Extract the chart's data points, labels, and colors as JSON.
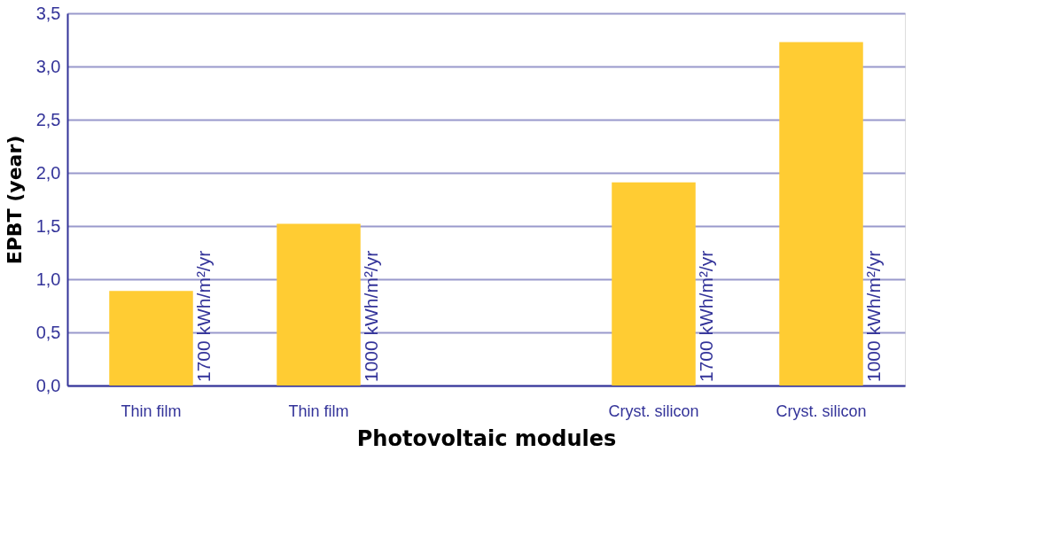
{
  "chart_data": {
    "type": "bar",
    "xlabel": "Photovoltaic modules",
    "ylabel": "EPBT (year)",
    "categories": [
      "Thin film",
      "Thin film",
      null,
      "Cryst. silicon",
      "Cryst. silicon"
    ],
    "series": [
      {
        "color": "#ffcc33",
        "values": [
          0.89,
          1.52,
          null,
          1.91,
          3.23
        ]
      }
    ],
    "ylim": [
      0,
      3.5
    ],
    "yticks": [
      {
        "value": 0,
        "label": "0,0"
      },
      {
        "value": 0.5,
        "label": "0,5"
      },
      {
        "value": 1,
        "label": "1,0"
      },
      {
        "value": 1.5,
        "label": "1,5"
      },
      {
        "value": 2,
        "label": "2,0"
      },
      {
        "value": 2.5,
        "label": "2,5"
      },
      {
        "value": 3,
        "label": "3,0"
      },
      {
        "value": 3.5,
        "label": "3,5"
      }
    ],
    "grid": "y",
    "annotations": [
      "1700 kWh/m²/yr",
      "1000 kWh/m²/yr",
      "1700 kWh/m²/yr",
      "1000 kWh/m²/yr"
    ]
  }
}
